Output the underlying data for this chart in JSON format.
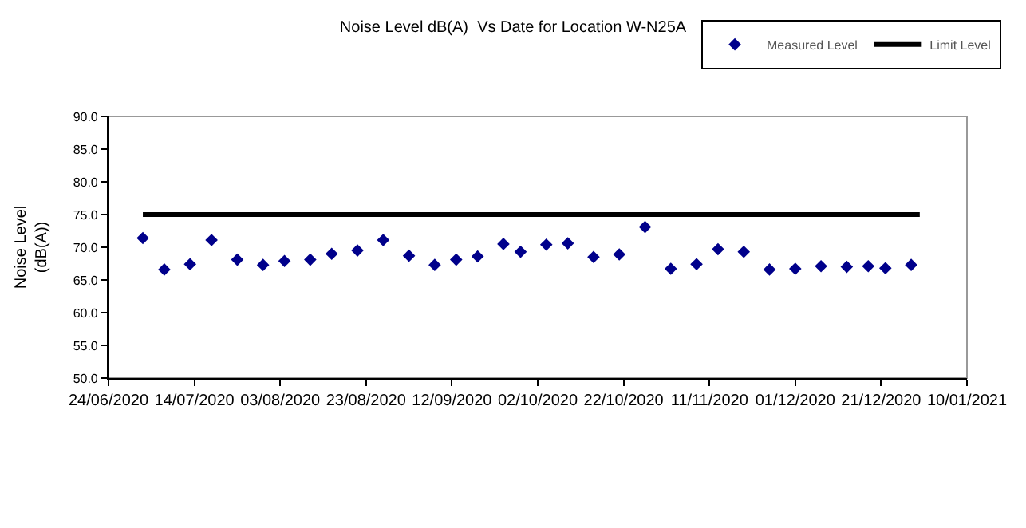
{
  "chart_data": {
    "type": "scatter",
    "title": "Noise Level dB(A)  Vs Date for Location W-N25A",
    "ylabel": "Noise Level\n(dB(A))",
    "x": [
      "2020-07-02",
      "2020-07-07",
      "2020-07-13",
      "2020-07-18",
      "2020-07-24",
      "2020-07-30",
      "2020-08-04",
      "2020-08-10",
      "2020-08-15",
      "2020-08-21",
      "2020-08-27",
      "2020-09-02",
      "2020-09-08",
      "2020-09-13",
      "2020-09-18",
      "2020-09-24",
      "2020-09-28",
      "2020-10-04",
      "2020-10-09",
      "2020-10-15",
      "2020-10-21",
      "2020-10-27",
      "2020-11-02",
      "2020-11-08",
      "2020-11-13",
      "2020-11-19",
      "2020-11-25",
      "2020-12-01",
      "2020-12-07",
      "2020-12-13",
      "2020-12-18",
      "2020-12-22",
      "2020-12-28"
    ],
    "series": [
      {
        "name": "Measured Level",
        "color": "#00008b",
        "marker": "diamond",
        "values": [
          71.4,
          66.6,
          67.4,
          71.1,
          68.1,
          67.3,
          67.9,
          68.1,
          69.0,
          69.5,
          71.1,
          68.7,
          67.3,
          68.1,
          68.6,
          70.5,
          69.3,
          70.4,
          70.6,
          68.5,
          68.9,
          73.1,
          66.7,
          67.4,
          69.7,
          69.3,
          66.6,
          66.7,
          67.1,
          67.0,
          67.1,
          66.8,
          67.3
        ]
      },
      {
        "name": "Limit Level",
        "type": "line",
        "color": "#000000",
        "marker": "none",
        "line_style": "solid",
        "x": [
          "2020-07-02",
          "2020-12-30"
        ],
        "values": [
          75,
          75
        ]
      }
    ],
    "xlim": [
      "2020-06-24",
      "2021-01-10"
    ],
    "xticks": [
      {
        "value": "2020-06-24",
        "label": "24/06/2020"
      },
      {
        "value": "2020-07-14",
        "label": "14/07/2020"
      },
      {
        "value": "2020-08-03",
        "label": "03/08/2020"
      },
      {
        "value": "2020-08-23",
        "label": "23/08/2020"
      },
      {
        "value": "2020-09-12",
        "label": "12/09/2020"
      },
      {
        "value": "2020-10-02",
        "label": "02/10/2020"
      },
      {
        "value": "2020-10-22",
        "label": "22/10/2020"
      },
      {
        "value": "2020-11-11",
        "label": "11/11/2020"
      },
      {
        "value": "2020-12-01",
        "label": "01/12/2020"
      },
      {
        "value": "2020-12-21",
        "label": "21/12/2020"
      },
      {
        "value": "2021-01-10",
        "label": "10/01/2021"
      }
    ],
    "ylim": [
      50,
      90
    ],
    "yticks": [
      {
        "value": 50,
        "label": "50.0"
      },
      {
        "value": 55,
        "label": "55.0"
      },
      {
        "value": 60,
        "label": "60.0"
      },
      {
        "value": 65,
        "label": "65.0"
      },
      {
        "value": 70,
        "label": "70.0"
      },
      {
        "value": 75,
        "label": "75.0"
      },
      {
        "value": 80,
        "label": "80.0"
      },
      {
        "value": 85,
        "label": "85.0"
      },
      {
        "value": 90,
        "label": "90.0"
      }
    ],
    "grid": false,
    "legend": "top right"
  }
}
